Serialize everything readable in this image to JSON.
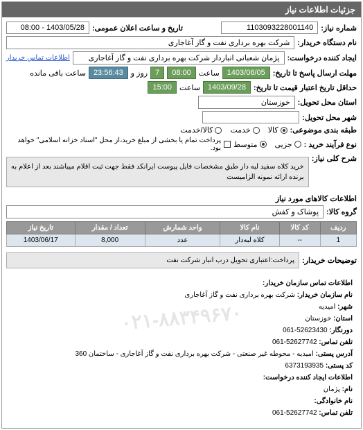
{
  "panel": {
    "title": "جزئیات اطلاعات نیاز"
  },
  "header": {
    "need_no_label": "شماره نیاز:",
    "need_no": "1103093228001140",
    "datetime_label": "تاریخ و ساعت اعلان عمومی:",
    "datetime": "1403/05/28 - 08:00",
    "buyer_device_label": "نام دستگاه خریدار:",
    "buyer_device": "شرکت بهره برداری نفت و گاز آغاجاری",
    "creator_label": "ایجاد کننده درخواست:",
    "creator": "پژمان شعبانی انباردار شرکت بهره برداری نفت و گاز آغاجاری",
    "contact_link": "اطلاعات تماس خریدار"
  },
  "deadline": {
    "send_label": "مهلت ارسال پاسخ تا تاریخ:",
    "date": "1403/06/05",
    "time_label": "ساعت",
    "time": "08:00",
    "days": "7",
    "days_label": "روز و",
    "remaining": "23:56:43",
    "remaining_label": "ساعت باقی مانده"
  },
  "validity": {
    "label": "حداقل تاریخ اعتبار قیمت تا تاریخ:",
    "date": "1403/09/28",
    "time_label": "ساعت",
    "time": "15:00"
  },
  "location": {
    "province_label": "استان محل تحویل:",
    "province": "خوزستان",
    "city_label": "شهر محل تحویل:"
  },
  "category": {
    "label": "طبقه بندی موضوعی:",
    "options": [
      {
        "key": "goods",
        "label": "کالا",
        "checked": true
      },
      {
        "key": "service",
        "label": "خدمت",
        "checked": false
      },
      {
        "key": "goods_service",
        "label": "کالا/خدمت",
        "checked": false
      }
    ]
  },
  "purchase_type": {
    "label": "نوع فرآیند خرید :",
    "options": [
      {
        "key": "minor",
        "label": "جزیی",
        "checked": false
      },
      {
        "key": "medium",
        "label": "متوسط",
        "checked": true
      }
    ],
    "note": "پرداخت تمام یا بخشی از مبلغ خرید،از محل \"اسناد خزانه اسلامی\" خواهد بود.",
    "note_check": false
  },
  "need_desc": {
    "label": "شرح کلی نیاز:",
    "text": "خرید کلاه سفید لبه دار طبق مشخصات فایل پیوست ایرانکد فقط جهت ثبت اقلام میباشند بعد از اعلام به برنده ارائه نمونه الزامیست"
  },
  "goods_group": {
    "label": "گروه کالا:",
    "value": "پوشاک و کفش"
  },
  "goods_table": {
    "title": "اطلاعات کالاهای مورد نیاز",
    "columns": [
      "ردیف",
      "کد کالا",
      "نام کالا",
      "واحد شمارش",
      "تعداد / مقدار",
      "تاریخ نیاز"
    ],
    "rows": [
      {
        "idx": "1",
        "code": "--",
        "name": "کلاه لبه‌دار",
        "unit": "عدد",
        "qty": "8,000",
        "date": "1403/06/17"
      }
    ]
  },
  "buyer_notes": {
    "label": "توضیحات خریدار:",
    "text": "پرداخت:اعتباری تحویل درب انبار شرکت نفت"
  },
  "contact_info": {
    "title": "اطلاعات تماس سازمان خریدار:",
    "org_label": "نام سازمان خریدار:",
    "org": "شرکت بهره برداری نفت و گاز آغاجاری",
    "city_label": "شهر:",
    "city": "امیدیه",
    "province_label": "استان:",
    "province": "خوزستان",
    "fax_label": "دورنگار:",
    "fax": "52623430-061",
    "phone_label": "تلفن تماس:",
    "phone": "52627742-061",
    "postal_label": "آدرس پستی:",
    "postal": "امیدیه - محوطه غیر صنعتی - شرکت بهره برداری نفت و گاز آغاجاری - ساختمان 360",
    "zip_label": "کد پستی:",
    "zip": "6373193935",
    "creator_title": "اطلاعات ایجاد کننده درخواست:",
    "creator_name_label": "نام:",
    "creator_name": "پژمان",
    "creator_family_label": "نام خانوادگی:",
    "creator_phone_label": "تلفن تماس:",
    "creator_phone": "52627742-061"
  },
  "watermark": "۰۲۱-۸۸۳۴۹۶۷۰"
}
